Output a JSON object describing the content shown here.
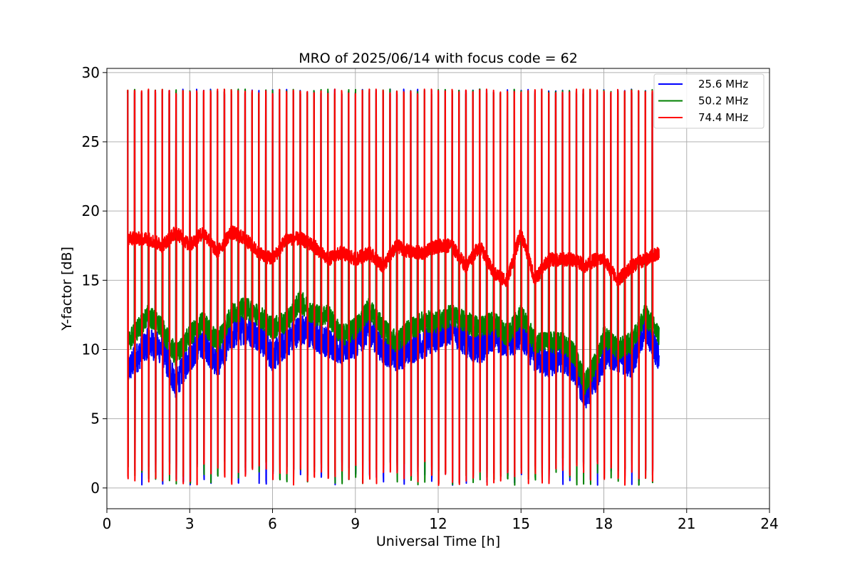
{
  "chart_data": {
    "type": "line",
    "title": "MRO of 2025/06/14 with focus code = 62",
    "xlabel": "Universal Time [h]",
    "ylabel": "Y-factor [dB]",
    "xlim": [
      0,
      24
    ],
    "ylim": [
      -1.5,
      30.3
    ],
    "xticks": [
      0,
      3,
      6,
      9,
      12,
      15,
      18,
      21,
      24
    ],
    "yticks": [
      0,
      5,
      10,
      15,
      20,
      25,
      30
    ],
    "grid": true,
    "legend_position": "top-right",
    "data_range_hours": [
      0.75,
      20.0
    ],
    "calibration_pulse_period_hours": 0.25,
    "calibration_pulse_high_db": 28.8,
    "calibration_pulse_low_db": 0.2,
    "series": [
      {
        "name": "25.6 MHz",
        "color": "#0000ff",
        "x": [
          0.75,
          1.5,
          2.0,
          2.5,
          3.0,
          3.5,
          4.0,
          4.5,
          5.0,
          5.5,
          6.0,
          6.5,
          7.0,
          7.5,
          8.0,
          8.5,
          9.0,
          9.5,
          10.0,
          10.5,
          11.0,
          11.5,
          12.0,
          12.5,
          13.0,
          13.5,
          14.0,
          14.5,
          15.0,
          15.5,
          16.0,
          16.5,
          17.0,
          17.3,
          17.7,
          18.0,
          18.5,
          19.0,
          19.5,
          20.0
        ],
        "y": [
          8.5,
          10.5,
          10.0,
          7.5,
          9.5,
          10.5,
          9.0,
          11.0,
          11.5,
          11.0,
          9.5,
          10.5,
          11.5,
          11.0,
          10.5,
          10.0,
          10.5,
          11.5,
          10.0,
          9.5,
          10.0,
          10.5,
          11.0,
          11.5,
          10.5,
          10.0,
          11.0,
          10.5,
          11.0,
          9.5,
          9.0,
          9.5,
          8.5,
          6.5,
          8.0,
          9.5,
          9.5,
          9.0,
          11.5,
          9.5
        ]
      },
      {
        "name": "50.2 MHz",
        "color": "#008000",
        "x": [
          0.75,
          1.5,
          2.0,
          2.5,
          3.0,
          3.5,
          4.0,
          4.5,
          5.0,
          5.5,
          6.0,
          6.5,
          7.0,
          7.5,
          8.0,
          8.5,
          9.0,
          9.5,
          10.0,
          10.5,
          11.0,
          11.5,
          12.0,
          12.5,
          13.0,
          13.5,
          14.0,
          14.5,
          15.0,
          15.5,
          16.0,
          16.5,
          17.0,
          17.3,
          17.7,
          18.0,
          18.5,
          19.0,
          19.5,
          20.0
        ],
        "y": [
          10.5,
          12.5,
          11.5,
          9.5,
          11.0,
          12.0,
          10.5,
          12.5,
          13.0,
          12.5,
          11.5,
          12.0,
          13.5,
          12.5,
          12.5,
          11.0,
          11.5,
          13.0,
          11.5,
          10.5,
          11.5,
          12.0,
          12.0,
          12.5,
          12.0,
          11.5,
          12.0,
          11.0,
          12.5,
          10.5,
          10.5,
          10.5,
          9.5,
          7.5,
          9.0,
          11.0,
          10.0,
          10.5,
          12.5,
          11.0
        ]
      },
      {
        "name": "74.4 MHz",
        "color": "#ff0000",
        "x": [
          0.75,
          1.5,
          2.0,
          2.5,
          3.0,
          3.5,
          4.0,
          4.5,
          5.0,
          5.5,
          6.0,
          6.5,
          7.0,
          7.5,
          8.0,
          8.5,
          9.0,
          9.5,
          10.0,
          10.5,
          11.0,
          11.5,
          12.0,
          12.5,
          13.0,
          13.5,
          14.0,
          14.5,
          15.0,
          15.5,
          16.0,
          16.5,
          17.0,
          17.3,
          17.7,
          18.0,
          18.5,
          19.0,
          19.5,
          20.0
        ],
        "y": [
          18.0,
          18.0,
          17.5,
          18.5,
          17.5,
          18.5,
          17.0,
          18.5,
          18.0,
          17.0,
          16.5,
          18.0,
          18.0,
          17.5,
          16.5,
          17.0,
          16.5,
          17.0,
          16.0,
          17.5,
          17.0,
          17.0,
          17.5,
          17.5,
          16.0,
          17.5,
          15.5,
          15.0,
          18.5,
          15.0,
          16.5,
          16.5,
          16.5,
          16.0,
          16.5,
          16.5,
          15.0,
          16.0,
          16.5,
          17.0
        ]
      }
    ]
  }
}
